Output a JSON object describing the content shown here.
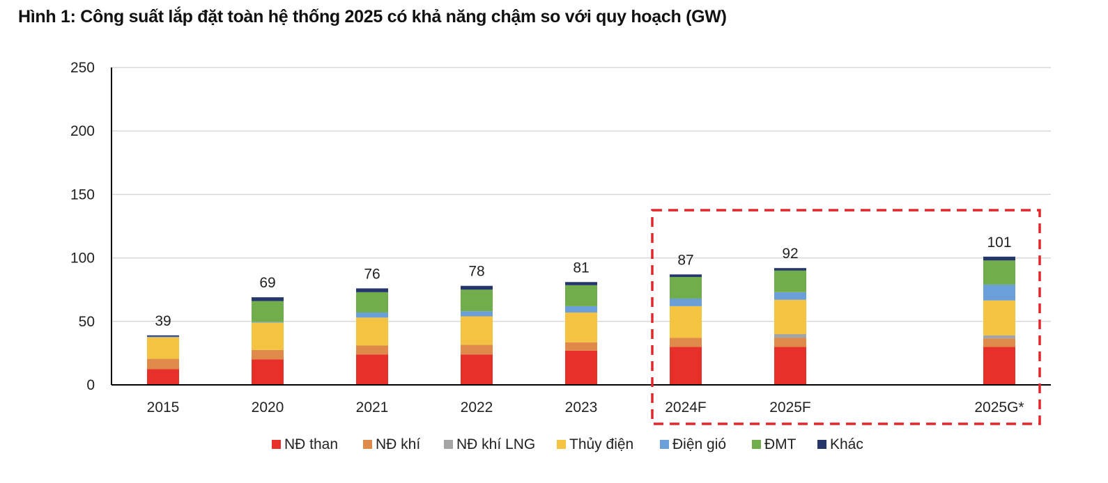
{
  "title": "Hình 1: Công suất lắp đặt toàn hệ thống 2025 có khả năng chậm so với quy hoạch (GW)",
  "chart_data": {
    "type": "bar",
    "stacked": true,
    "categories": [
      "2015",
      "2020",
      "2021",
      "2022",
      "2023",
      "2024F",
      "2025F",
      "2025G*"
    ],
    "totals": [
      39,
      69,
      76,
      78,
      81,
      87,
      92,
      101
    ],
    "series": [
      {
        "name": "NĐ than",
        "color": "#e8302a",
        "values": [
          12.5,
          20,
          24,
          24,
          27,
          30,
          30,
          30
        ]
      },
      {
        "name": "NĐ khí",
        "color": "#e08a4a",
        "values": [
          8,
          7.5,
          7,
          7.5,
          6.5,
          7,
          7,
          6.5
        ]
      },
      {
        "name": "NĐ khí LNG",
        "color": "#a5a5a5",
        "values": [
          0,
          0,
          0,
          0,
          0,
          0,
          3,
          2.5
        ]
      },
      {
        "name": "Thủy điện",
        "color": "#f5c342",
        "values": [
          17,
          21.5,
          22,
          22.5,
          23.5,
          25,
          27,
          27.5
        ]
      },
      {
        "name": "Điện gió",
        "color": "#6b9fd8",
        "values": [
          0.5,
          0.5,
          4,
          4,
          5,
          6,
          6,
          12.5
        ]
      },
      {
        "name": "ĐMT",
        "color": "#72ad4c",
        "values": [
          0,
          16.5,
          16,
          17,
          16.5,
          17,
          17,
          19
        ]
      },
      {
        "name": "Khác",
        "color": "#25366b",
        "values": [
          1,
          3,
          3,
          3,
          2.5,
          2,
          2,
          3
        ]
      }
    ],
    "ylim": [
      0,
      250
    ],
    "yticks": [
      0,
      50,
      100,
      150,
      200,
      250
    ],
    "grid": true,
    "legend_position": "bottom",
    "highlight": {
      "from": "2024F",
      "to": "2025G*",
      "style": "red dashed box"
    }
  }
}
